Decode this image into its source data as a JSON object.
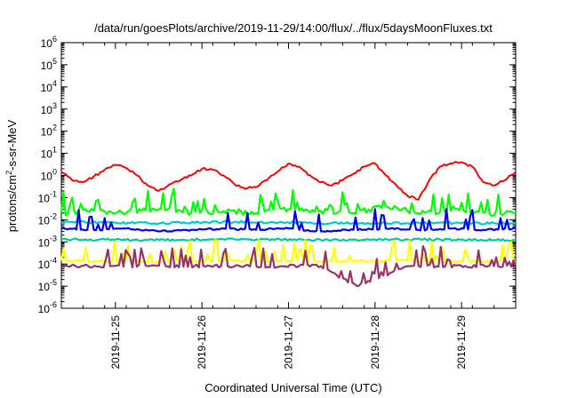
{
  "chart_data": {
    "type": "line",
    "title": "/data/run/goesPlots/archive/2019-11-29/14:00/flux/../flux/5daysMoonFluxes.txt",
    "xlabel": "Coordinated Universal Time (UTC)",
    "ylabel_parts": {
      "before": "protons/cm",
      "sup": "2",
      "after": "-s-sr-MeV"
    },
    "yscale": "log",
    "ylim": [
      1e-06,
      1000000.0
    ],
    "y_ticks": [
      {
        "value": 1e-06,
        "base": "10",
        "exp": "-6"
      },
      {
        "value": 1e-05,
        "base": "10",
        "exp": "-5"
      },
      {
        "value": 0.0001,
        "base": "10",
        "exp": "-4"
      },
      {
        "value": 0.001,
        "base": "10",
        "exp": "-3"
      },
      {
        "value": 0.01,
        "base": "10",
        "exp": "-2"
      },
      {
        "value": 0.1,
        "base": "10",
        "exp": "-1"
      },
      {
        "value": 1,
        "base": "10",
        "exp": "0"
      },
      {
        "value": 10,
        "base": "10",
        "exp": "1"
      },
      {
        "value": 100,
        "base": "10",
        "exp": "2"
      },
      {
        "value": 1000,
        "base": "10",
        "exp": "3"
      },
      {
        "value": 10000,
        "base": "10",
        "exp": "4"
      },
      {
        "value": 100000,
        "base": "10",
        "exp": "5"
      },
      {
        "value": 1000000,
        "base": "10",
        "exp": "6"
      }
    ],
    "xlim": [
      "2019-11-24T09:00",
      "2019-11-29T15:00"
    ],
    "x_ticks": [
      "2019-11-25",
      "2019-11-26",
      "2019-11-27",
      "2019-11-28",
      "2019-11-29"
    ],
    "grid": false,
    "series": [
      {
        "color": "#ff0000",
        "x": [
          "2019-11-24T09:00",
          "2019-11-24T12:00",
          "2019-11-24T15:00",
          "2019-11-24T18:00",
          "2019-11-24T21:00",
          "2019-11-25T00:00",
          "2019-11-25T03:00",
          "2019-11-25T06:00",
          "2019-11-25T09:00",
          "2019-11-25T12:00",
          "2019-11-25T15:00",
          "2019-11-25T18:00",
          "2019-11-25T21:00",
          "2019-11-26T00:00",
          "2019-11-26T03:00",
          "2019-11-26T06:00",
          "2019-11-26T09:00",
          "2019-11-26T12:00",
          "2019-11-26T15:00",
          "2019-11-26T18:00",
          "2019-11-26T21:00",
          "2019-11-27T00:00",
          "2019-11-27T03:00",
          "2019-11-27T06:00",
          "2019-11-27T09:00",
          "2019-11-27T12:00",
          "2019-11-27T15:00",
          "2019-11-27T18:00",
          "2019-11-27T21:00",
          "2019-11-28T00:00",
          "2019-11-28T03:00",
          "2019-11-28T06:00",
          "2019-11-28T09:00",
          "2019-11-28T12:00",
          "2019-11-28T15:00",
          "2019-11-28T18:00",
          "2019-11-28T21:00",
          "2019-11-29T00:00",
          "2019-11-29T03:00",
          "2019-11-29T06:00",
          "2019-11-29T09:00",
          "2019-11-29T12:00",
          "2019-11-29T15:00"
        ],
        "values": [
          1.5,
          0.6,
          0.5,
          0.9,
          1.8,
          3.0,
          2.2,
          1.0,
          0.35,
          0.2,
          0.4,
          0.6,
          1.0,
          2.0,
          1.8,
          1.0,
          0.4,
          0.25,
          0.3,
          0.6,
          1.5,
          3.5,
          2.5,
          1.0,
          0.5,
          0.35,
          0.6,
          1.2,
          2.5,
          3.5,
          1.0,
          0.35,
          0.12,
          0.08,
          0.6,
          2.5,
          3.5,
          4.0,
          2.5,
          0.5,
          0.35,
          0.6,
          1.5
        ]
      },
      {
        "color": "#00ff00",
        "x": [
          "2019-11-24T09:00",
          "2019-11-24T18:00",
          "2019-11-25T03:00",
          "2019-11-25T12:00",
          "2019-11-25T21:00",
          "2019-11-26T06:00",
          "2019-11-26T15:00",
          "2019-11-27T00:00",
          "2019-11-27T09:00",
          "2019-11-27T18:00",
          "2019-11-28T03:00",
          "2019-11-28T12:00",
          "2019-11-28T21:00",
          "2019-11-29T06:00",
          "2019-11-29T15:00"
        ],
        "values": [
          0.02,
          0.025,
          0.02,
          0.03,
          0.02,
          0.025,
          0.02,
          0.03,
          0.025,
          0.02,
          0.04,
          0.02,
          0.025,
          0.02,
          0.02
        ]
      },
      {
        "color": "#00cccc",
        "x": [
          "2019-11-24T09:00",
          "2019-11-25T09:00",
          "2019-11-26T09:00",
          "2019-11-27T09:00",
          "2019-11-28T09:00",
          "2019-11-29T09:00",
          "2019-11-29T15:00"
        ],
        "values": [
          0.008,
          0.007,
          0.008,
          0.007,
          0.007,
          0.007,
          0.007
        ]
      },
      {
        "color": "#0000ff",
        "x": [
          "2019-11-24T09:00",
          "2019-11-24T18:00",
          "2019-11-25T03:00",
          "2019-11-25T12:00",
          "2019-11-25T21:00",
          "2019-11-26T06:00",
          "2019-11-26T15:00",
          "2019-11-27T00:00",
          "2019-11-27T09:00",
          "2019-11-27T18:00",
          "2019-11-28T03:00",
          "2019-11-28T12:00",
          "2019-11-28T21:00",
          "2019-11-29T06:00",
          "2019-11-29T15:00"
        ],
        "values": [
          0.004,
          0.0035,
          0.004,
          0.003,
          0.0035,
          0.004,
          0.0035,
          0.004,
          0.003,
          0.0035,
          0.004,
          0.0035,
          0.004,
          0.0035,
          0.004
        ]
      },
      {
        "color": "#00cc99",
        "x": [
          "2019-11-24T09:00",
          "2019-11-25T09:00",
          "2019-11-26T09:00",
          "2019-11-27T09:00",
          "2019-11-28T09:00",
          "2019-11-29T09:00",
          "2019-11-29T15:00"
        ],
        "values": [
          0.0013,
          0.0012,
          0.0013,
          0.0012,
          0.0013,
          0.0012,
          0.0012
        ]
      },
      {
        "color": "#ffff00",
        "x": [
          "2019-11-24T09:00",
          "2019-11-25T09:00",
          "2019-11-26T09:00",
          "2019-11-27T09:00",
          "2019-11-28T09:00",
          "2019-11-29T09:00",
          "2019-11-29T15:00"
        ],
        "values": [
          0.00014,
          0.00013,
          0.00014,
          0.00013,
          0.00014,
          0.00013,
          0.00013
        ]
      },
      {
        "color": "#993366",
        "x": [
          "2019-11-24T09:00",
          "2019-11-25T09:00",
          "2019-11-26T09:00",
          "2019-11-27T09:00",
          "2019-11-27T19:00",
          "2019-11-28T09:00",
          "2019-11-29T09:00",
          "2019-11-29T15:00"
        ],
        "values": [
          8e-05,
          8e-05,
          8e-05,
          8e-05,
          1e-05,
          8e-05,
          8e-05,
          8e-05
        ]
      }
    ]
  }
}
